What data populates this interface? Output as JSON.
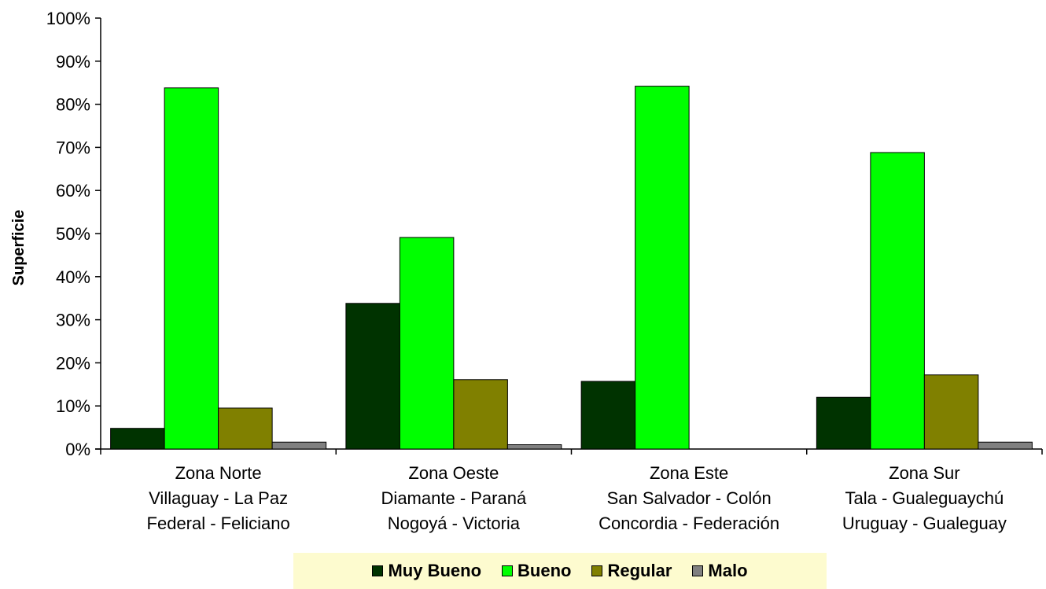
{
  "chart_data": {
    "type": "bar",
    "title": "",
    "xlabel": "",
    "ylabel": "Superficie",
    "ylim": [
      0,
      100
    ],
    "y_ticks": [
      "0%",
      "10%",
      "20%",
      "30%",
      "40%",
      "50%",
      "60%",
      "70%",
      "80%",
      "90%",
      "100%"
    ],
    "categories": [
      [
        "Zona Norte",
        "Villaguay - La Paz",
        "Federal - Feliciano"
      ],
      [
        "Zona Oeste",
        "Diamante - Paraná",
        "Nogoyá - Victoria"
      ],
      [
        "Zona Este",
        "San Salvador - Colón",
        "Concordia - Federación"
      ],
      [
        "Zona Sur",
        "Tala - Gualeguaychú",
        "Uruguay - Gualeguay"
      ]
    ],
    "series": [
      {
        "name": "Muy Bueno",
        "color": "#003300",
        "values": [
          4.8,
          33.8,
          15.7,
          12.0
        ]
      },
      {
        "name": "Bueno",
        "color": "#00ff00",
        "values": [
          83.8,
          49.1,
          84.2,
          68.8
        ]
      },
      {
        "name": "Regular",
        "color": "#808000",
        "values": [
          9.5,
          16.1,
          0,
          17.2
        ]
      },
      {
        "name": "Malo",
        "color": "#808080",
        "values": [
          1.6,
          1.0,
          0,
          1.6
        ]
      }
    ],
    "grid": false,
    "legend_position": "bottom",
    "legend_background": "#fdfbcf"
  }
}
